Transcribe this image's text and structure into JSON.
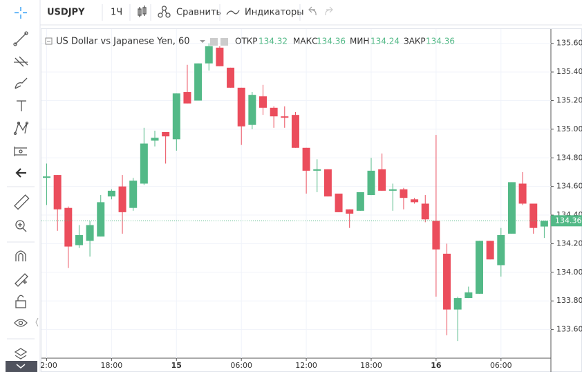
{
  "toolbar": {
    "symbol": "USDJPY",
    "interval": "1Ч",
    "compare": "Сравнить",
    "indicators": "Индикаторы"
  },
  "chart_data": {
    "type": "candlestick",
    "title": "US Dollar vs Japanese Yen, 60",
    "legend_labels": {
      "open": "ОТКР",
      "high": "МАКС",
      "low": "МИН",
      "close": "ЗАКР"
    },
    "categories": [
      "2:00",
      null,
      null,
      null,
      null,
      null,
      "18:00",
      null,
      null,
      null,
      null,
      null,
      "15",
      null,
      null,
      null,
      null,
      null,
      "06:00",
      null,
      null,
      null,
      null,
      null,
      "12:00",
      null,
      null,
      null,
      null,
      null,
      "18:00",
      null,
      null,
      null,
      null,
      null,
      "16",
      null,
      null,
      null,
      null,
      null,
      "06:00",
      null,
      null,
      null,
      null
    ],
    "open": [
      134.66,
      134.68,
      134.45,
      134.19,
      134.22,
      134.25,
      134.53,
      134.6,
      134.45,
      134.62,
      134.92,
      134.98,
      134.93,
      135.26,
      135.2,
      135.46,
      135.57,
      135.43,
      135.29,
      135.03,
      135.23,
      135.15,
      135.09,
      135.1,
      134.87,
      134.71,
      134.72,
      134.55,
      134.44,
      134.43,
      134.54,
      134.72,
      134.57,
      134.58,
      134.51,
      134.48,
      134.36,
      134.13,
      133.74,
      133.82,
      133.85,
      134.22,
      134.05,
      134.27,
      134.62,
      134.48,
      134.32
    ],
    "high": [
      134.76,
      134.68,
      134.46,
      134.33,
      134.36,
      134.54,
      134.58,
      134.68,
      134.66,
      135.01,
      134.99,
      134.98,
      135.25,
      135.45,
      135.46,
      135.6,
      135.58,
      135.43,
      135.29,
      135.26,
      135.31,
      135.16,
      135.16,
      135.12,
      134.87,
      134.79,
      134.72,
      134.55,
      134.44,
      134.56,
      134.8,
      134.83,
      134.62,
      134.59,
      134.52,
      134.54,
      134.96,
      134.2,
      133.83,
      133.9,
      134.22,
      134.22,
      134.31,
      134.63,
      134.7,
      134.48,
      134.36
    ],
    "low": [
      134.47,
      134.29,
      134.03,
      134.17,
      134.11,
      134.25,
      134.51,
      134.27,
      134.43,
      134.61,
      134.88,
      134.76,
      134.85,
      135.18,
      135.2,
      135.41,
      135.44,
      135.29,
      134.89,
      135.0,
      135.1,
      135.01,
      135.01,
      134.87,
      134.55,
      134.56,
      134.53,
      134.42,
      134.31,
      134.43,
      134.54,
      134.57,
      134.43,
      134.44,
      134.48,
      134.35,
      133.83,
      133.56,
      133.52,
      133.82,
      133.85,
      134.09,
      133.97,
      134.27,
      134.47,
      134.27,
      134.24
    ],
    "close": [
      134.67,
      134.44,
      134.18,
      134.26,
      134.33,
      134.49,
      134.57,
      134.42,
      134.64,
      134.9,
      134.94,
      134.95,
      135.25,
      135.18,
      135.46,
      135.58,
      135.44,
      135.29,
      135.02,
      135.24,
      135.15,
      135.09,
      135.08,
      134.87,
      134.71,
      134.72,
      134.53,
      134.42,
      134.41,
      134.56,
      134.71,
      134.57,
      134.58,
      134.52,
      134.49,
      134.37,
      134.16,
      133.74,
      133.82,
      133.86,
      134.22,
      134.09,
      134.26,
      134.63,
      134.48,
      134.31,
      134.36
    ],
    "up_color": "#53b987",
    "down_color": "#eb4d5c",
    "ylim": [
      133.4,
      135.7
    ],
    "yticks": [
      {
        "value": 133.6,
        "label": "133.60"
      },
      {
        "value": 133.8,
        "label": "133.80"
      },
      {
        "value": 134,
        "label": "134.00"
      },
      {
        "value": 134.2,
        "label": "134.20"
      },
      {
        "value": 134.4,
        "label": "134.40"
      },
      {
        "value": 134.6,
        "label": "134.60"
      },
      {
        "value": 134.8,
        "label": "134.80"
      },
      {
        "value": 135,
        "label": "135.00"
      },
      {
        "value": 135.2,
        "label": "135.20"
      },
      {
        "value": 135.4,
        "label": "135.40"
      },
      {
        "value": 135.6,
        "label": "135.60"
      }
    ],
    "grid": true
  }
}
